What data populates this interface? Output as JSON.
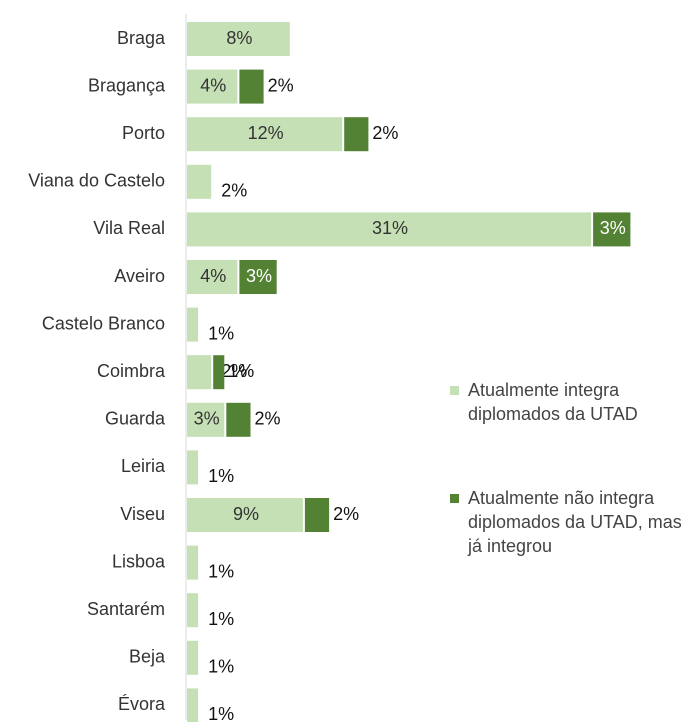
{
  "chart_data": {
    "type": "bar",
    "orientation": "horizontal",
    "stacked": true,
    "categories": [
      "Braga",
      "Bragança",
      "Porto",
      "Viana do Castelo",
      "Vila Real",
      "Aveiro",
      "Castelo Branco",
      "Coimbra",
      "Guarda",
      "Leiria",
      "Viseu",
      "Lisboa",
      "Santarém",
      "Beja",
      "Évora"
    ],
    "series": [
      {
        "name": "Atualmente integra diplomados da UTAD",
        "color": "#c5e0b4",
        "values": [
          8,
          4,
          12,
          2,
          31,
          4,
          1,
          2,
          3,
          1,
          9,
          1,
          1,
          1,
          1
        ],
        "value_labels": [
          "8%",
          "4%",
          "12%",
          "2%",
          "31%",
          "4%",
          "1%",
          "2%",
          "3%",
          "1%",
          "9%",
          "1%",
          "1%",
          "1%",
          "1%"
        ]
      },
      {
        "name": "Atualmente não integra diplomados da UTAD, mas já integrou",
        "color": "#548235",
        "values": [
          null,
          2,
          2,
          null,
          3,
          3,
          null,
          1,
          2,
          null,
          2,
          null,
          null,
          null,
          null
        ],
        "value_labels": [
          null,
          "2%",
          "2%",
          null,
          "3%",
          "3%",
          null,
          "1%",
          "2%",
          null,
          "2%",
          null,
          null,
          null,
          null
        ]
      }
    ]
  }
}
